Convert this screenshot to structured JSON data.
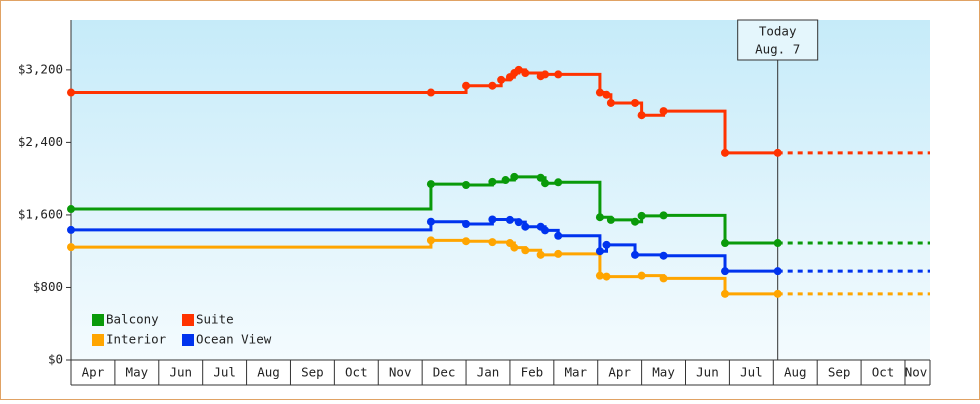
{
  "chart_data": {
    "type": "step-line",
    "xlim": [
      0,
      19.57
    ],
    "xticks": [
      {
        "value": 0,
        "label": "Apr"
      },
      {
        "value": 1,
        "label": "May"
      },
      {
        "value": 2,
        "label": "Jun"
      },
      {
        "value": 3,
        "label": "Jul"
      },
      {
        "value": 4,
        "label": "Aug"
      },
      {
        "value": 5,
        "label": "Sep"
      },
      {
        "value": 6,
        "label": "Oct"
      },
      {
        "value": 7,
        "label": "Nov"
      },
      {
        "value": 8,
        "label": "Dec"
      },
      {
        "value": 9,
        "label": "Jan"
      },
      {
        "value": 10,
        "label": "Feb"
      },
      {
        "value": 11,
        "label": "Mar"
      },
      {
        "value": 12,
        "label": "Apr"
      },
      {
        "value": 13,
        "label": "May"
      },
      {
        "value": 14,
        "label": "Jun"
      },
      {
        "value": 15,
        "label": "Jul"
      },
      {
        "value": 16,
        "label": "Aug"
      },
      {
        "value": 17,
        "label": "Sep"
      },
      {
        "value": 18,
        "label": "Oct"
      },
      {
        "value": 19,
        "label": "Nov"
      }
    ],
    "ylim": [
      0,
      3750
    ],
    "yticks": [
      {
        "value": 0,
        "label": "$0"
      },
      {
        "value": 800,
        "label": "$800"
      },
      {
        "value": 1600,
        "label": "$1,600"
      },
      {
        "value": 2400,
        "label": "$2,400"
      },
      {
        "value": 3200,
        "label": "$3,200"
      }
    ],
    "annotation": {
      "x": 16.1,
      "lines": [
        "Today",
        "Aug. 7"
      ]
    },
    "series": [
      {
        "name": "Balcony",
        "color": "#0a9a0a",
        "x": [
          0,
          8.2,
          9.0,
          9.6,
          9.9,
          10.1,
          10.7,
          10.8,
          11.1,
          12.05,
          12.3,
          12.85,
          13.0,
          13.5,
          14.9,
          16.1
        ],
        "values": [
          1665,
          1940,
          1930,
          1965,
          1985,
          2020,
          2010,
          1950,
          1960,
          1575,
          1545,
          1525,
          1590,
          1595,
          1290,
          1290
        ]
      },
      {
        "name": "Suite",
        "color": "#ff3300",
        "x": [
          0,
          8.2,
          9.0,
          9.6,
          9.8,
          10.0,
          10.1,
          10.2,
          10.35,
          10.7,
          10.8,
          11.1,
          12.05,
          12.2,
          12.3,
          12.85,
          13.0,
          13.5,
          14.9,
          16.1
        ],
        "values": [
          2950,
          2950,
          3025,
          3025,
          3090,
          3120,
          3165,
          3200,
          3165,
          3130,
          3150,
          3150,
          2950,
          2925,
          2835,
          2835,
          2700,
          2745,
          2285,
          2285
        ]
      },
      {
        "name": "Interior",
        "color": "#ffa500",
        "x": [
          0,
          8.2,
          9.0,
          9.6,
          10.0,
          10.1,
          10.35,
          10.7,
          11.1,
          12.05,
          12.2,
          13.0,
          13.5,
          14.9,
          16.1
        ],
        "values": [
          1245,
          1320,
          1310,
          1300,
          1290,
          1240,
          1210,
          1160,
          1170,
          930,
          920,
          930,
          900,
          730,
          730
        ]
      },
      {
        "name": "Ocean View",
        "color": "#0033ee",
        "x": [
          0,
          8.2,
          9.0,
          9.6,
          10.0,
          10.2,
          10.35,
          10.7,
          10.8,
          11.1,
          12.05,
          12.2,
          12.85,
          13.5,
          14.9,
          16.1
        ],
        "values": [
          1435,
          1525,
          1500,
          1550,
          1545,
          1520,
          1470,
          1470,
          1430,
          1370,
          1200,
          1270,
          1160,
          1150,
          980,
          980
        ]
      }
    ]
  }
}
